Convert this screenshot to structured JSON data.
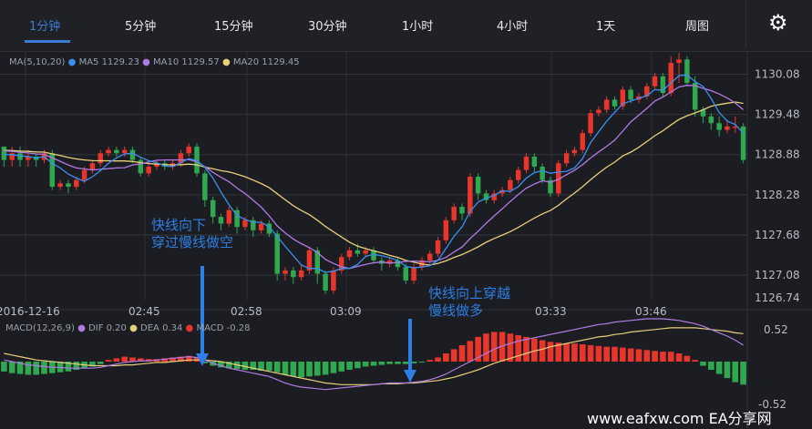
{
  "tabs": [
    {
      "label": "1分钟",
      "active": true
    },
    {
      "label": "5分钟"
    },
    {
      "label": "15分钟"
    },
    {
      "label": "30分钟"
    },
    {
      "label": "1小时"
    },
    {
      "label": "4小时"
    },
    {
      "label": "1天"
    },
    {
      "label": "周图"
    }
  ],
  "settings_icon": "gear-icon",
  "ma_legend": {
    "params": "MA(5,10,20)",
    "ma5": "MA5 1129.23",
    "ma10": "MA10 1129.57",
    "ma20": "MA20 1129.45"
  },
  "macd_legend": {
    "params": "MACD(12,26,9)",
    "dif": "DIF 0.20",
    "dea": "DEA 0.34",
    "macd": "MACD -0.28"
  },
  "colors": {
    "up": "#e8362c",
    "down": "#2fa84f",
    "ma5": "#3b8ff0",
    "ma10": "#b07be3",
    "ma20": "#e8d07a",
    "annotation": "#2d7fe6"
  },
  "annotations": {
    "sell_line1": "快线向下",
    "sell_line2": "穿过慢线做空",
    "buy_line1": "快线向上穿越",
    "buy_line2": "慢线做多"
  },
  "watermark": "www.eafxw.com   EA分享网",
  "chart_data": {
    "type": "candlestick",
    "price_axis": [
      1130.08,
      1129.48,
      1128.88,
      1128.28,
      1127.68,
      1127.08,
      1126.74
    ],
    "time_axis": [
      "2016-12-16",
      "02:45",
      "02:58",
      "03:09",
      "03:33",
      "03:46"
    ],
    "macd_axis": [
      "0.52",
      "-0.52"
    ],
    "ylim": [
      1126.7,
      1130.4
    ],
    "macd_ylim": [
      -0.52,
      0.52
    ],
    "candles": [
      [
        1129.0,
        1128.8,
        1129.0,
        1128.7
      ],
      [
        1128.8,
        1128.9,
        1129.0,
        1128.7
      ],
      [
        1128.9,
        1128.8,
        1129.0,
        1128.7
      ],
      [
        1128.8,
        1128.85,
        1128.95,
        1128.7
      ],
      [
        1128.85,
        1128.8,
        1128.9,
        1128.7
      ],
      [
        1128.8,
        1128.9,
        1128.95,
        1128.75
      ],
      [
        1128.9,
        1128.4,
        1128.95,
        1128.35
      ],
      [
        1128.4,
        1128.45,
        1128.5,
        1128.35
      ],
      [
        1128.45,
        1128.4,
        1128.5,
        1128.3
      ],
      [
        1128.4,
        1128.5,
        1128.55,
        1128.35
      ],
      [
        1128.5,
        1128.65,
        1128.7,
        1128.45
      ],
      [
        1128.65,
        1128.75,
        1128.8,
        1128.6
      ],
      [
        1128.75,
        1128.9,
        1128.95,
        1128.7
      ],
      [
        1128.9,
        1128.95,
        1129.0,
        1128.85
      ],
      [
        1128.95,
        1128.9,
        1129.0,
        1128.85
      ],
      [
        1128.9,
        1128.95,
        1129.0,
        1128.85
      ],
      [
        1128.95,
        1128.8,
        1129.0,
        1128.75
      ],
      [
        1128.8,
        1128.6,
        1128.85,
        1128.55
      ],
      [
        1128.6,
        1128.7,
        1128.75,
        1128.55
      ],
      [
        1128.7,
        1128.75,
        1128.8,
        1128.65
      ],
      [
        1128.75,
        1128.7,
        1128.8,
        1128.65
      ],
      [
        1128.7,
        1128.75,
        1128.8,
        1128.65
      ],
      [
        1128.75,
        1128.9,
        1128.95,
        1128.7
      ],
      [
        1128.9,
        1129.0,
        1129.05,
        1128.85
      ],
      [
        1129.0,
        1128.6,
        1129.05,
        1128.55
      ],
      [
        1128.6,
        1128.2,
        1128.65,
        1128.1
      ],
      [
        1128.2,
        1127.95,
        1128.25,
        1127.85
      ],
      [
        1127.95,
        1127.85,
        1128.0,
        1127.75
      ],
      [
        1127.85,
        1128.05,
        1128.1,
        1127.8
      ],
      [
        1128.05,
        1127.8,
        1128.1,
        1127.7
      ],
      [
        1127.8,
        1127.9,
        1127.95,
        1127.75
      ],
      [
        1127.9,
        1127.75,
        1127.95,
        1127.65
      ],
      [
        1127.75,
        1127.85,
        1127.9,
        1127.7
      ],
      [
        1127.85,
        1127.7,
        1127.9,
        1127.65
      ],
      [
        1127.7,
        1127.1,
        1127.75,
        1127.0
      ],
      [
        1127.1,
        1127.15,
        1127.2,
        1127.0
      ],
      [
        1127.15,
        1127.05,
        1127.2,
        1126.95
      ],
      [
        1127.05,
        1127.15,
        1127.25,
        1127.0
      ],
      [
        1127.15,
        1127.45,
        1127.5,
        1127.1
      ],
      [
        1127.45,
        1127.1,
        1127.5,
        1126.95
      ],
      [
        1127.1,
        1126.85,
        1127.15,
        1126.8
      ],
      [
        1126.85,
        1127.15,
        1127.2,
        1126.8
      ],
      [
        1127.15,
        1127.35,
        1127.4,
        1127.1
      ],
      [
        1127.35,
        1127.45,
        1127.5,
        1127.3
      ],
      [
        1127.45,
        1127.4,
        1127.55,
        1127.35
      ],
      [
        1127.4,
        1127.45,
        1127.5,
        1127.35
      ],
      [
        1127.45,
        1127.3,
        1127.5,
        1127.25
      ],
      [
        1127.3,
        1127.25,
        1127.35,
        1127.15
      ],
      [
        1127.25,
        1127.3,
        1127.35,
        1127.2
      ],
      [
        1127.3,
        1127.2,
        1127.35,
        1127.15
      ],
      [
        1127.2,
        1127.0,
        1127.25,
        1126.95
      ],
      [
        1127.0,
        1127.2,
        1127.25,
        1126.95
      ],
      [
        1127.2,
        1127.3,
        1127.35,
        1127.15
      ],
      [
        1127.3,
        1127.4,
        1127.45,
        1127.25
      ],
      [
        1127.4,
        1127.6,
        1127.65,
        1127.35
      ],
      [
        1127.6,
        1127.9,
        1127.95,
        1127.55
      ],
      [
        1127.9,
        1128.1,
        1128.15,
        1127.85
      ],
      [
        1128.1,
        1128.0,
        1128.15,
        1127.9
      ],
      [
        1128.0,
        1128.55,
        1128.6,
        1127.95
      ],
      [
        1128.55,
        1128.3,
        1128.6,
        1128.2
      ],
      [
        1128.3,
        1128.2,
        1128.35,
        1128.15
      ],
      [
        1128.2,
        1128.3,
        1128.35,
        1128.15
      ],
      [
        1128.3,
        1128.35,
        1128.4,
        1128.25
      ],
      [
        1128.35,
        1128.5,
        1128.55,
        1128.3
      ],
      [
        1128.5,
        1128.65,
        1128.7,
        1128.45
      ],
      [
        1128.65,
        1128.85,
        1128.9,
        1128.6
      ],
      [
        1128.85,
        1128.7,
        1128.9,
        1128.6
      ],
      [
        1128.7,
        1128.5,
        1128.75,
        1128.45
      ],
      [
        1128.5,
        1128.3,
        1128.55,
        1128.25
      ],
      [
        1128.3,
        1128.75,
        1128.8,
        1128.25
      ],
      [
        1128.75,
        1128.9,
        1128.95,
        1128.7
      ],
      [
        1128.9,
        1128.95,
        1129.0,
        1128.85
      ],
      [
        1128.95,
        1129.2,
        1129.25,
        1128.9
      ],
      [
        1129.2,
        1129.5,
        1129.55,
        1129.15
      ],
      [
        1129.5,
        1129.55,
        1129.6,
        1129.45
      ],
      [
        1129.55,
        1129.7,
        1129.75,
        1129.5
      ],
      [
        1129.7,
        1129.6,
        1129.75,
        1129.55
      ],
      [
        1129.6,
        1129.85,
        1129.9,
        1129.55
      ],
      [
        1129.85,
        1129.7,
        1129.9,
        1129.65
      ],
      [
        1129.7,
        1129.75,
        1129.8,
        1129.65
      ],
      [
        1129.75,
        1129.9,
        1129.95,
        1129.7
      ],
      [
        1129.9,
        1130.05,
        1130.1,
        1129.85
      ],
      [
        1130.05,
        1129.8,
        1130.1,
        1129.75
      ],
      [
        1129.8,
        1130.25,
        1130.35,
        1129.75
      ],
      [
        1130.25,
        1130.3,
        1130.4,
        1129.95
      ],
      [
        1130.3,
        1129.95,
        1130.35,
        1129.9
      ],
      [
        1129.95,
        1129.55,
        1130.05,
        1129.45
      ],
      [
        1129.55,
        1129.45,
        1129.6,
        1129.35
      ],
      [
        1129.45,
        1129.35,
        1129.5,
        1129.25
      ],
      [
        1129.35,
        1129.25,
        1129.45,
        1129.15
      ],
      [
        1129.25,
        1129.3,
        1129.4,
        1129.2
      ],
      [
        1129.3,
        1129.3,
        1129.45,
        1129.2
      ],
      [
        1129.3,
        1128.8,
        1129.35,
        1128.75
      ]
    ],
    "macd_hist": [
      -0.12,
      -0.14,
      -0.15,
      -0.16,
      -0.16,
      -0.15,
      -0.14,
      -0.13,
      -0.12,
      -0.1,
      -0.08,
      -0.06,
      -0.03,
      0.02,
      0.04,
      0.06,
      0.05,
      0.04,
      0.03,
      0.03,
      0.04,
      0.05,
      0.06,
      0.07,
      0.05,
      -0.02,
      -0.05,
      -0.07,
      -0.08,
      -0.09,
      -0.1,
      -0.1,
      -0.11,
      -0.11,
      -0.13,
      -0.16,
      -0.18,
      -0.19,
      -0.18,
      -0.17,
      -0.16,
      -0.14,
      -0.12,
      -0.1,
      -0.08,
      -0.06,
      -0.05,
      -0.04,
      -0.03,
      -0.03,
      -0.03,
      -0.02,
      -0.01,
      0.02,
      0.05,
      0.1,
      0.15,
      0.2,
      0.25,
      0.3,
      0.34,
      0.36,
      0.36,
      0.34,
      0.32,
      0.3,
      0.28,
      0.26,
      0.24,
      0.23,
      0.22,
      0.22,
      0.21,
      0.2,
      0.19,
      0.18,
      0.18,
      0.17,
      0.16,
      0.15,
      0.14,
      0.13,
      0.12,
      0.12,
      0.1,
      0.07,
      0.02,
      -0.05,
      -0.1,
      -0.15,
      -0.2,
      -0.25,
      -0.28
    ],
    "dif": [
      0.02,
      0.0,
      -0.02,
      -0.04,
      -0.05,
      -0.06,
      -0.07,
      -0.07,
      -0.08,
      -0.08,
      -0.08,
      -0.08,
      -0.07,
      -0.05,
      -0.03,
      -0.01,
      0.0,
      0.01,
      0.01,
      0.02,
      0.03,
      0.04,
      0.05,
      0.06,
      0.05,
      0.02,
      -0.02,
      -0.05,
      -0.08,
      -0.1,
      -0.12,
      -0.14,
      -0.16,
      -0.18,
      -0.22,
      -0.26,
      -0.29,
      -0.31,
      -0.32,
      -0.33,
      -0.34,
      -0.33,
      -0.32,
      -0.31,
      -0.3,
      -0.29,
      -0.28,
      -0.27,
      -0.26,
      -0.26,
      -0.26,
      -0.25,
      -0.24,
      -0.22,
      -0.19,
      -0.15,
      -0.1,
      -0.05,
      0.0,
      0.05,
      0.1,
      0.15,
      0.19,
      0.22,
      0.25,
      0.27,
      0.29,
      0.31,
      0.33,
      0.35,
      0.37,
      0.39,
      0.41,
      0.43,
      0.45,
      0.46,
      0.48,
      0.49,
      0.5,
      0.51,
      0.52,
      0.52,
      0.52,
      0.51,
      0.5,
      0.48,
      0.46,
      0.43,
      0.39,
      0.35,
      0.31,
      0.26,
      0.2
    ],
    "dea": [
      0.1,
      0.08,
      0.06,
      0.04,
      0.02,
      0.01,
      0.0,
      -0.01,
      -0.02,
      -0.03,
      -0.04,
      -0.05,
      -0.05,
      -0.05,
      -0.05,
      -0.04,
      -0.04,
      -0.03,
      -0.02,
      -0.01,
      -0.01,
      0.0,
      0.01,
      0.02,
      0.02,
      0.02,
      0.01,
      0.0,
      -0.02,
      -0.04,
      -0.06,
      -0.08,
      -0.1,
      -0.12,
      -0.14,
      -0.16,
      -0.18,
      -0.2,
      -0.22,
      -0.24,
      -0.26,
      -0.27,
      -0.28,
      -0.28,
      -0.28,
      -0.28,
      -0.28,
      -0.27,
      -0.27,
      -0.27,
      -0.26,
      -0.26,
      -0.25,
      -0.24,
      -0.23,
      -0.21,
      -0.19,
      -0.16,
      -0.13,
      -0.1,
      -0.06,
      -0.02,
      0.01,
      0.04,
      0.07,
      0.1,
      0.13,
      0.15,
      0.18,
      0.2,
      0.22,
      0.24,
      0.26,
      0.28,
      0.3,
      0.31,
      0.33,
      0.34,
      0.36,
      0.37,
      0.38,
      0.39,
      0.4,
      0.41,
      0.41,
      0.41,
      0.41,
      0.4,
      0.39,
      0.38,
      0.37,
      0.35,
      0.34
    ]
  }
}
